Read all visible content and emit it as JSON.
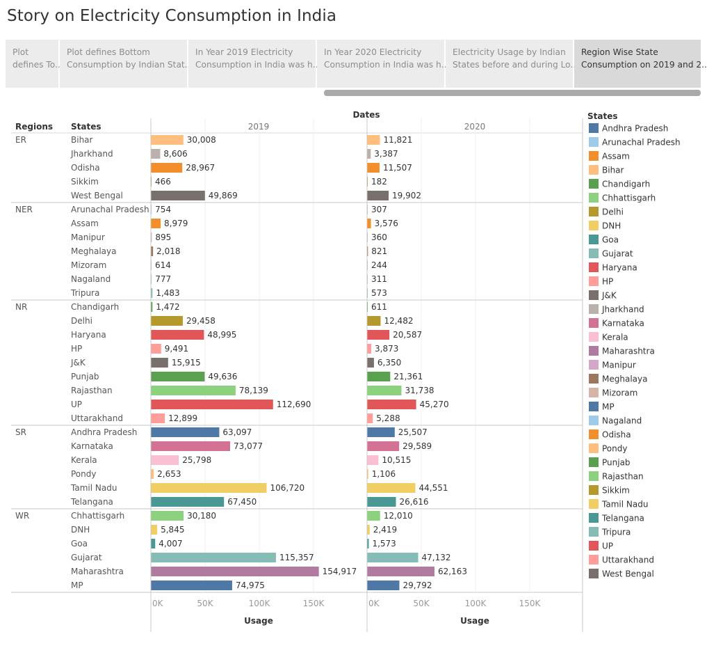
{
  "story": {
    "title": "Story on Electricity Consumption in India",
    "tabs": [
      {
        "line1": "Plot",
        "line2": "defines To..",
        "active": false
      },
      {
        "line1": "Plot defines Bottom",
        "line2": "Consumption by Indian Stat..",
        "active": false
      },
      {
        "line1": "In Year 2019 Electricity",
        "line2": "Consumption in India was h..",
        "active": false
      },
      {
        "line1": "In Year 2020 Electricity",
        "line2": "Consumption in India was h..",
        "active": false
      },
      {
        "line1": "Electricity Usage by Indian",
        "line2": "States before and during Lo..",
        "active": false
      },
      {
        "line1": "Region Wise State",
        "line2": "Consumption on 2019 and 2..",
        "active": true
      }
    ]
  },
  "chart_data": {
    "type": "bar",
    "orientation": "horizontal",
    "column_header": "Dates",
    "row_headers": [
      "Regions",
      "States"
    ],
    "panels": [
      "2019",
      "2020"
    ],
    "xlabel": "Usage",
    "xlim": [
      0,
      200000
    ],
    "x_ticks": [
      "0K",
      "50K",
      "100K",
      "150K"
    ],
    "grid": true,
    "legend_title": "States",
    "legend_position": "right",
    "regions": [
      {
        "name": "ER",
        "states": [
          {
            "name": "Bihar",
            "v2019": 30008,
            "v2020": 11821
          },
          {
            "name": "Jharkhand",
            "v2019": 8606,
            "v2020": 3387
          },
          {
            "name": "Odisha",
            "v2019": 28967,
            "v2020": 11507
          },
          {
            "name": "Sikkim",
            "v2019": 466,
            "v2020": 182
          },
          {
            "name": "West Bengal",
            "v2019": 49869,
            "v2020": 19902
          }
        ]
      },
      {
        "name": "NER",
        "states": [
          {
            "name": "Arunachal Pradesh",
            "v2019": 754,
            "v2020": 307
          },
          {
            "name": "Assam",
            "v2019": 8979,
            "v2020": 3576
          },
          {
            "name": "Manipur",
            "v2019": 895,
            "v2020": 360
          },
          {
            "name": "Meghalaya",
            "v2019": 2018,
            "v2020": 821
          },
          {
            "name": "Mizoram",
            "v2019": 614,
            "v2020": 244
          },
          {
            "name": "Nagaland",
            "v2019": 777,
            "v2020": 311
          },
          {
            "name": "Tripura",
            "v2019": 1483,
            "v2020": 573
          }
        ]
      },
      {
        "name": "NR",
        "states": [
          {
            "name": "Chandigarh",
            "v2019": 1472,
            "v2020": 611
          },
          {
            "name": "Delhi",
            "v2019": 29458,
            "v2020": 12482
          },
          {
            "name": "Haryana",
            "v2019": 48995,
            "v2020": 20587
          },
          {
            "name": "HP",
            "v2019": 9491,
            "v2020": 3873
          },
          {
            "name": "J&K",
            "v2019": 15915,
            "v2020": 6350
          },
          {
            "name": "Punjab",
            "v2019": 49636,
            "v2020": 21361
          },
          {
            "name": "Rajasthan",
            "v2019": 78139,
            "v2020": 31738
          },
          {
            "name": "UP",
            "v2019": 112690,
            "v2020": 45270
          },
          {
            "name": "Uttarakhand",
            "v2019": 12899,
            "v2020": 5288
          }
        ]
      },
      {
        "name": "SR",
        "states": [
          {
            "name": "Andhra Pradesh",
            "v2019": 63097,
            "v2020": 25507
          },
          {
            "name": "Karnataka",
            "v2019": 73077,
            "v2020": 29589
          },
          {
            "name": "Kerala",
            "v2019": 25798,
            "v2020": 10515
          },
          {
            "name": "Pondy",
            "v2019": 2653,
            "v2020": 1106
          },
          {
            "name": "Tamil Nadu",
            "v2019": 106720,
            "v2020": 44551
          },
          {
            "name": "Telangana",
            "v2019": 67450,
            "v2020": 26616
          }
        ]
      },
      {
        "name": "WR",
        "states": [
          {
            "name": "Chhattisgarh",
            "v2019": 30180,
            "v2020": 12010
          },
          {
            "name": "DNH",
            "v2019": 5845,
            "v2020": 2419
          },
          {
            "name": "Goa",
            "v2019": 4007,
            "v2020": 1573
          },
          {
            "name": "Gujarat",
            "v2019": 115357,
            "v2020": 47132
          },
          {
            "name": "Maharashtra",
            "v2019": 154917,
            "v2020": 62163
          },
          {
            "name": "MP",
            "v2019": 74975,
            "v2020": 29792
          }
        ]
      }
    ],
    "legend": [
      {
        "name": "Andhra Pradesh",
        "color": "#4e79a7"
      },
      {
        "name": "Arunachal Pradesh",
        "color": "#a0cbe8"
      },
      {
        "name": "Assam",
        "color": "#f28e2b"
      },
      {
        "name": "Bihar",
        "color": "#ffbe7d"
      },
      {
        "name": "Chandigarh",
        "color": "#59a14f"
      },
      {
        "name": "Chhattisgarh",
        "color": "#8cd17d"
      },
      {
        "name": "Delhi",
        "color": "#b6992d"
      },
      {
        "name": "DNH",
        "color": "#f1ce63"
      },
      {
        "name": "Goa",
        "color": "#499894"
      },
      {
        "name": "Gujarat",
        "color": "#86bcb6"
      },
      {
        "name": "Haryana",
        "color": "#e15759"
      },
      {
        "name": "HP",
        "color": "#ff9d9a"
      },
      {
        "name": "J&K",
        "color": "#79706e"
      },
      {
        "name": "Jharkhand",
        "color": "#bab0ac"
      },
      {
        "name": "Karnataka",
        "color": "#d37295"
      },
      {
        "name": "Kerala",
        "color": "#fabfd2"
      },
      {
        "name": "Maharashtra",
        "color": "#b07aa1"
      },
      {
        "name": "Manipur",
        "color": "#d4a6c8"
      },
      {
        "name": "Meghalaya",
        "color": "#9d7660"
      },
      {
        "name": "Mizoram",
        "color": "#d7b5a6"
      },
      {
        "name": "MP",
        "color": "#4e79a7"
      },
      {
        "name": "Nagaland",
        "color": "#a0cbe8"
      },
      {
        "name": "Odisha",
        "color": "#f28e2b"
      },
      {
        "name": "Pondy",
        "color": "#ffbe7d"
      },
      {
        "name": "Punjab",
        "color": "#59a14f"
      },
      {
        "name": "Rajasthan",
        "color": "#8cd17d"
      },
      {
        "name": "Sikkim",
        "color": "#b6992d"
      },
      {
        "name": "Tamil Nadu",
        "color": "#f1ce63"
      },
      {
        "name": "Telangana",
        "color": "#499894"
      },
      {
        "name": "Tripura",
        "color": "#86bcb6"
      },
      {
        "name": "UP",
        "color": "#e15759"
      },
      {
        "name": "Uttarakhand",
        "color": "#ff9d9a"
      },
      {
        "name": "West Bengal",
        "color": "#79706e"
      }
    ]
  }
}
